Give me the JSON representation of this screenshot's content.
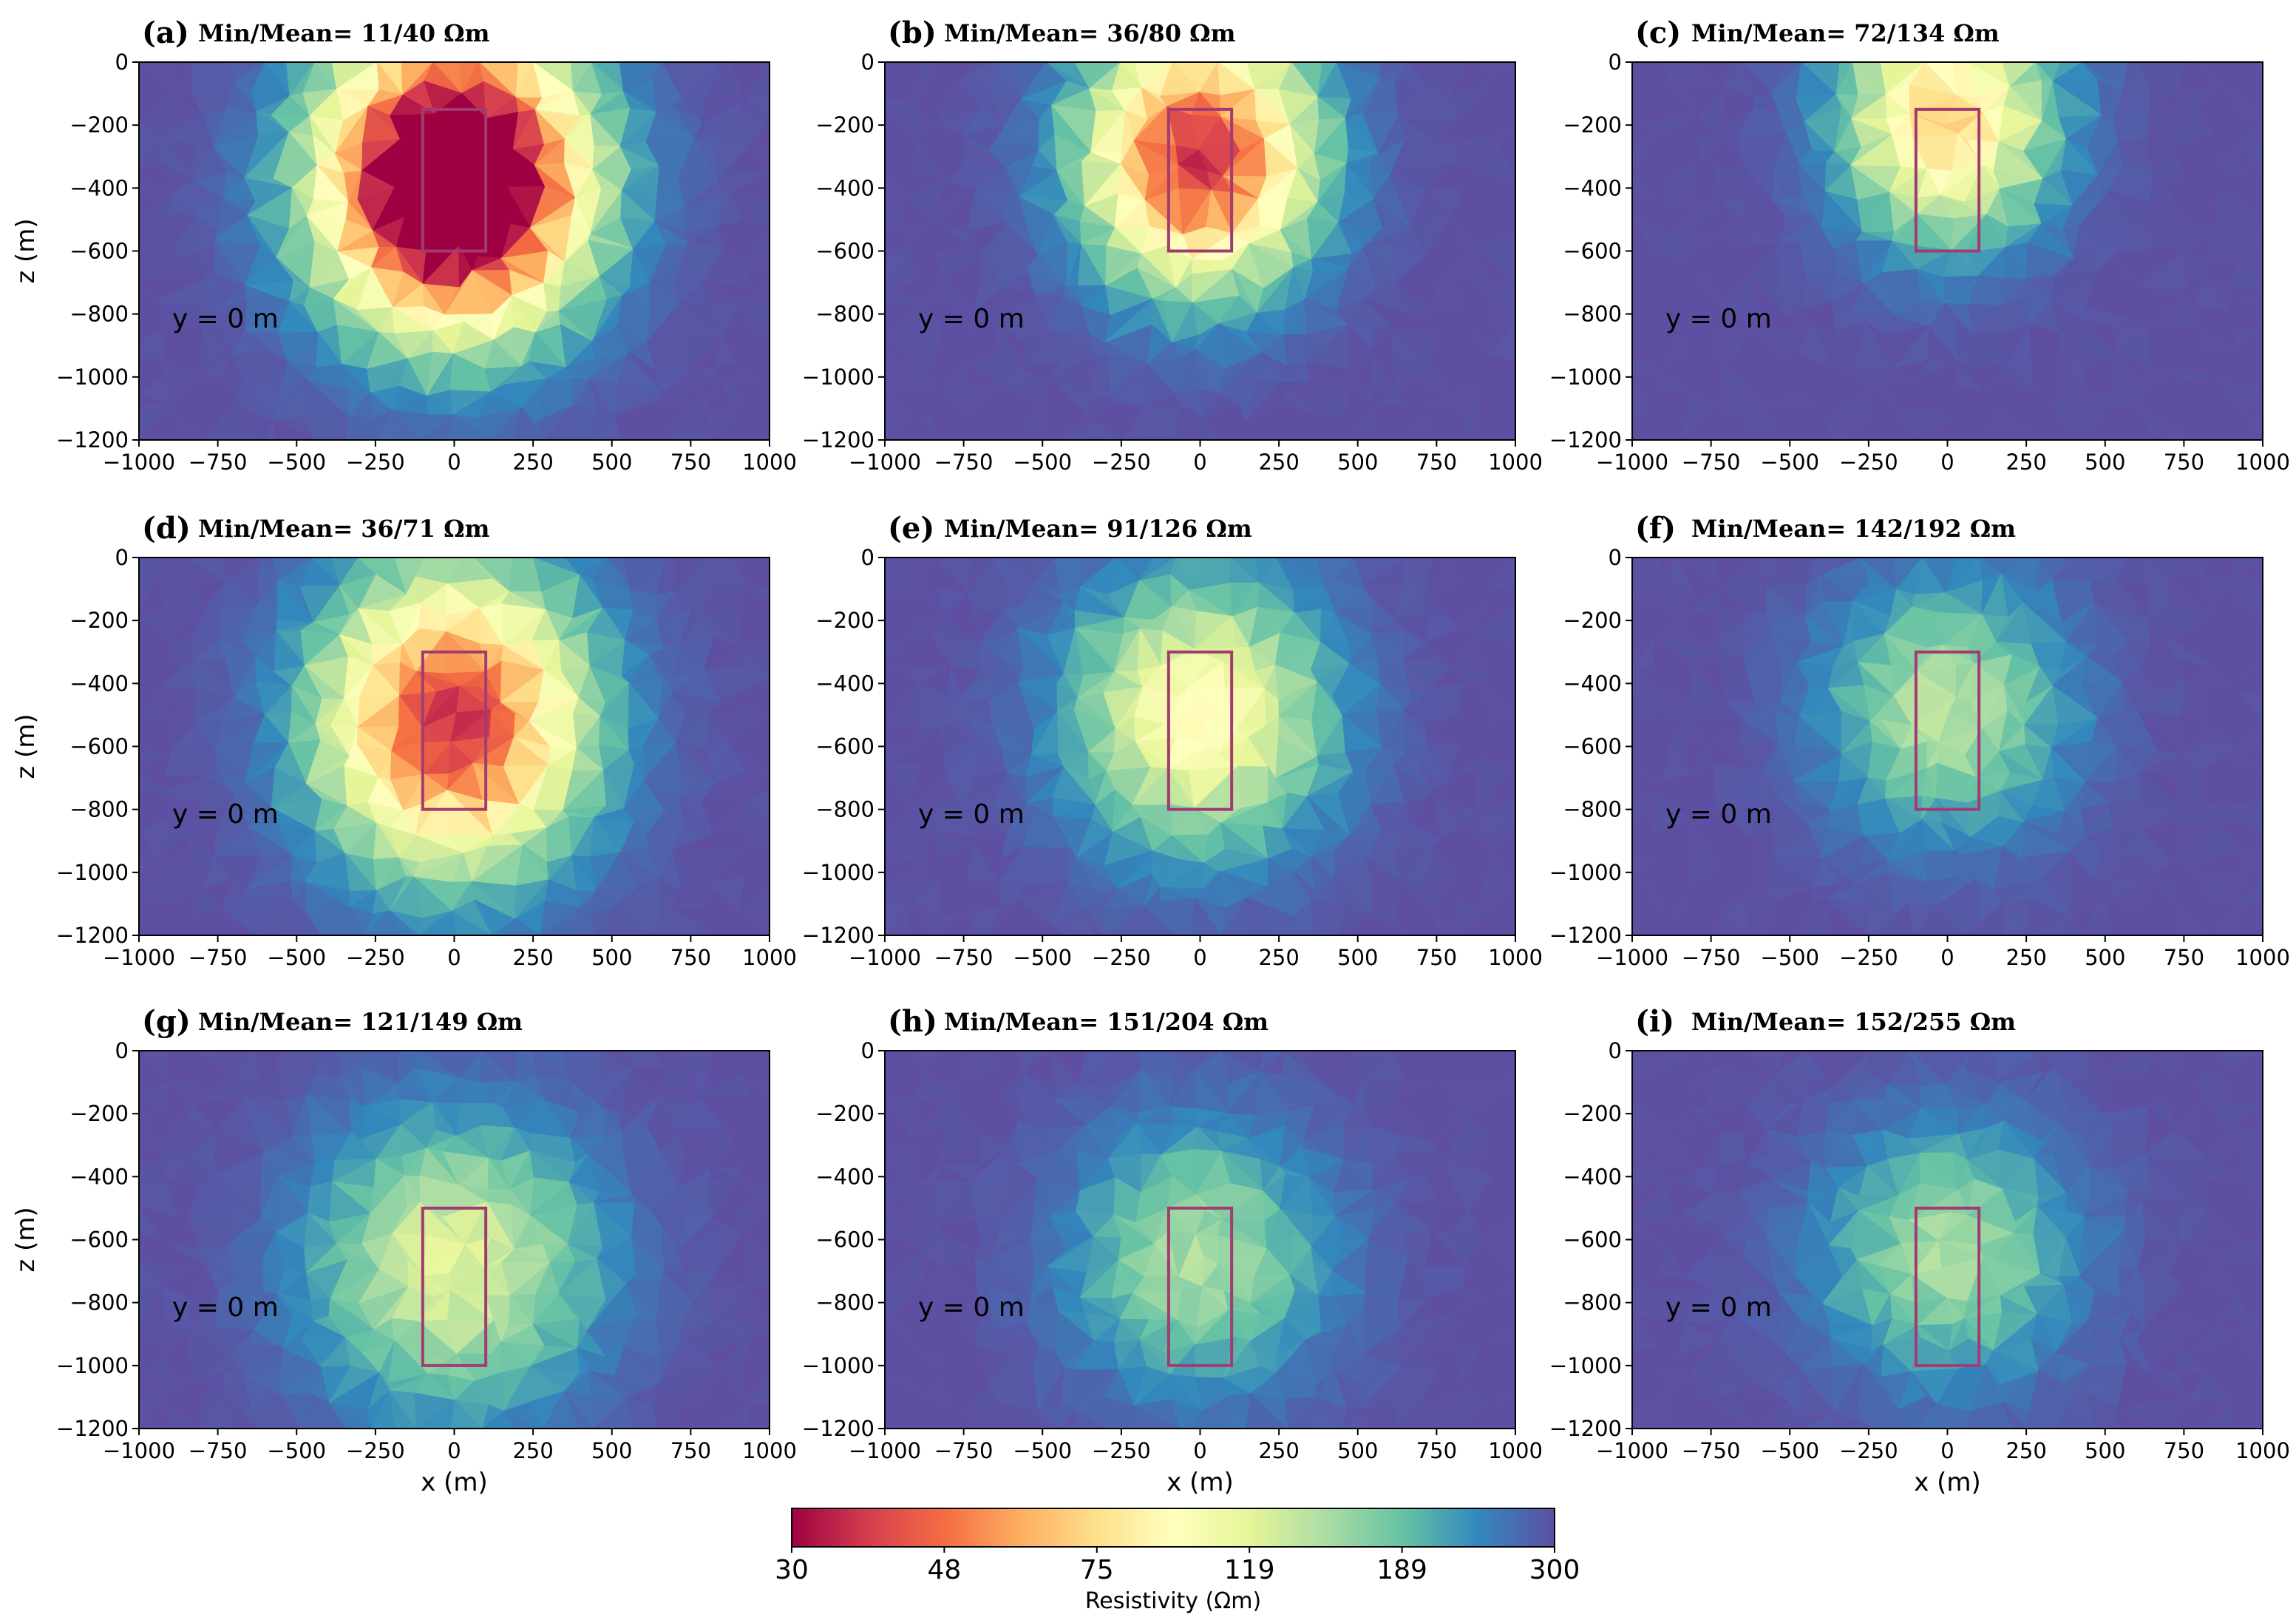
{
  "figure": {
    "colorbar": {
      "label": "Resistivity (Ωm)",
      "ticks": [
        "30",
        "48",
        "75",
        "119",
        "189",
        "300"
      ],
      "colors": [
        "#9e0142",
        "#d53e4f",
        "#f46d43",
        "#fdae61",
        "#fee08b",
        "#ffffbf",
        "#e6f598",
        "#abdda4",
        "#66c2a5",
        "#3288bd",
        "#5e4fa2"
      ]
    },
    "box_color": "#a23b72"
  },
  "chart_data": [
    {
      "type": "heatmap",
      "panel": "(a)",
      "title": "Min/Mean= 11/40 Ωm",
      "annotation": "y = 0 m",
      "xlabel": "",
      "ylabel": "z (m)",
      "xlim": [
        -1000,
        1000
      ],
      "ylim": [
        -1200,
        0
      ],
      "xticks": [
        "−1000",
        "−750",
        "−500",
        "−250",
        "0",
        "250",
        "500",
        "750",
        "1000"
      ],
      "yticks": [
        "0",
        "−200",
        "−400",
        "−600",
        "−800",
        "−1000",
        "−1200"
      ],
      "target_box": {
        "x": [
          -100,
          100
        ],
        "z": [
          -600,
          -150
        ]
      },
      "anomaly": {
        "center_z": -380,
        "min_resistivity": 11,
        "spread_x": 420,
        "spread_z": 470
      },
      "background_resistivity": 300
    },
    {
      "type": "heatmap",
      "panel": "(b)",
      "title": "Min/Mean= 36/80 Ωm",
      "annotation": "y = 0 m",
      "xlabel": "",
      "ylabel": "",
      "xlim": [
        -1000,
        1000
      ],
      "ylim": [
        -1200,
        0
      ],
      "xticks": [
        "−1000",
        "−750",
        "−500",
        "−250",
        "0",
        "250",
        "500",
        "750",
        "1000"
      ],
      "yticks": [
        "0",
        "−200",
        "−400",
        "−600",
        "−800",
        "−1000",
        "−1200"
      ],
      "target_box": {
        "x": [
          -100,
          100
        ],
        "z": [
          -600,
          -150
        ]
      },
      "anomaly": {
        "center_z": -300,
        "min_resistivity": 36,
        "spread_x": 370,
        "spread_z": 420
      },
      "background_resistivity": 300
    },
    {
      "type": "heatmap",
      "panel": "(c)",
      "title": "Min/Mean= 72/134 Ωm",
      "annotation": "y = 0 m",
      "xlabel": "",
      "ylabel": "",
      "xlim": [
        -1000,
        1000
      ],
      "ylim": [
        -1200,
        0
      ],
      "xticks": [
        "−1000",
        "−750",
        "−500",
        "−250",
        "0",
        "250",
        "500",
        "750",
        "1000"
      ],
      "yticks": [
        "0",
        "−200",
        "−400",
        "−600",
        "−800",
        "−1000",
        "−1200"
      ],
      "target_box": {
        "x": [
          -100,
          100
        ],
        "z": [
          -600,
          -150
        ]
      },
      "anomaly": {
        "center_z": -180,
        "min_resistivity": 72,
        "spread_x": 340,
        "spread_z": 400
      },
      "background_resistivity": 300
    },
    {
      "type": "heatmap",
      "panel": "(d)",
      "title": "Min/Mean= 36/71 Ωm",
      "annotation": "y = 0 m",
      "xlabel": "",
      "ylabel": "z (m)",
      "xlim": [
        -1000,
        1000
      ],
      "ylim": [
        -1200,
        0
      ],
      "xticks": [
        "−1000",
        "−750",
        "−500",
        "−250",
        "0",
        "250",
        "500",
        "750",
        "1000"
      ],
      "yticks": [
        "0",
        "−200",
        "−400",
        "−600",
        "−800",
        "−1000",
        "−1200"
      ],
      "target_box": {
        "x": [
          -100,
          100
        ],
        "z": [
          -800,
          -300
        ]
      },
      "anomaly": {
        "center_z": -520,
        "min_resistivity": 36,
        "spread_x": 430,
        "spread_z": 480
      },
      "background_resistivity": 300
    },
    {
      "type": "heatmap",
      "panel": "(e)",
      "title": "Min/Mean= 91/126 Ωm",
      "annotation": "y = 0 m",
      "xlabel": "",
      "ylabel": "",
      "xlim": [
        -1000,
        1000
      ],
      "ylim": [
        -1200,
        0
      ],
      "xticks": [
        "−1000",
        "−750",
        "−500",
        "−250",
        "0",
        "250",
        "500",
        "750",
        "1000"
      ],
      "yticks": [
        "0",
        "−200",
        "−400",
        "−600",
        "−800",
        "−1000",
        "−1200"
      ],
      "target_box": {
        "x": [
          -100,
          100
        ],
        "z": [
          -800,
          -300
        ]
      },
      "anomaly": {
        "center_z": -500,
        "min_resistivity": 91,
        "spread_x": 420,
        "spread_z": 440
      },
      "background_resistivity": 300
    },
    {
      "type": "heatmap",
      "panel": "(f)",
      "title": "Min/Mean= 142/192 Ωm",
      "annotation": "y = 0 m",
      "xlabel": "",
      "ylabel": "",
      "xlim": [
        -1000,
        1000
      ],
      "ylim": [
        -1200,
        0
      ],
      "xticks": [
        "−1000",
        "−750",
        "−500",
        "−250",
        "0",
        "250",
        "500",
        "750",
        "1000"
      ],
      "yticks": [
        "0",
        "−200",
        "−400",
        "−600",
        "−800",
        "−1000",
        "−1200"
      ],
      "target_box": {
        "x": [
          -100,
          100
        ],
        "z": [
          -800,
          -300
        ]
      },
      "anomaly": {
        "center_z": -480,
        "min_resistivity": 142,
        "spread_x": 400,
        "spread_z": 420
      },
      "background_resistivity": 300
    },
    {
      "type": "heatmap",
      "panel": "(g)",
      "title": "Min/Mean= 121/149 Ωm",
      "annotation": "y = 0 m",
      "xlabel": "x (m)",
      "ylabel": "z (m)",
      "xlim": [
        -1000,
        1000
      ],
      "ylim": [
        -1200,
        0
      ],
      "xticks": [
        "−1000",
        "−750",
        "−500",
        "−250",
        "0",
        "250",
        "500",
        "750",
        "1000"
      ],
      "yticks": [
        "0",
        "−200",
        "−400",
        "−600",
        "−800",
        "−1000",
        "−1200"
      ],
      "target_box": {
        "x": [
          -100,
          100
        ],
        "z": [
          -1000,
          -500
        ]
      },
      "anomaly": {
        "center_z": -680,
        "min_resistivity": 121,
        "spread_x": 470,
        "spread_z": 480
      },
      "background_resistivity": 300
    },
    {
      "type": "heatmap",
      "panel": "(h)",
      "title": "Min/Mean= 151/204 Ωm",
      "annotation": "y = 0 m",
      "xlabel": "x (m)",
      "ylabel": "",
      "xlim": [
        -1000,
        1000
      ],
      "ylim": [
        -1200,
        0
      ],
      "xticks": [
        "−1000",
        "−750",
        "−500",
        "−250",
        "0",
        "250",
        "500",
        "750",
        "1000"
      ],
      "yticks": [
        "0",
        "−200",
        "−400",
        "−600",
        "−800",
        "−1000",
        "−1200"
      ],
      "target_box": {
        "x": [
          -100,
          100
        ],
        "z": [
          -1000,
          -500
        ]
      },
      "anomaly": {
        "center_z": -660,
        "min_resistivity": 151,
        "spread_x": 430,
        "spread_z": 440
      },
      "background_resistivity": 300
    },
    {
      "type": "heatmap",
      "panel": "(i)",
      "title": "Min/Mean= 152/255 Ωm",
      "annotation": "y = 0 m",
      "xlabel": "x (m)",
      "ylabel": "",
      "xlim": [
        -1000,
        1000
      ],
      "ylim": [
        -1200,
        0
      ],
      "xticks": [
        "−1000",
        "−750",
        "−500",
        "−250",
        "0",
        "250",
        "500",
        "750",
        "1000"
      ],
      "yticks": [
        "0",
        "−200",
        "−400",
        "−600",
        "−800",
        "−1000",
        "−1200"
      ],
      "target_box": {
        "x": [
          -100,
          100
        ],
        "z": [
          -1000,
          -500
        ]
      },
      "anomaly": {
        "center_z": -640,
        "min_resistivity": 152,
        "spread_x": 420,
        "spread_z": 420
      },
      "background_resistivity": 300
    }
  ]
}
